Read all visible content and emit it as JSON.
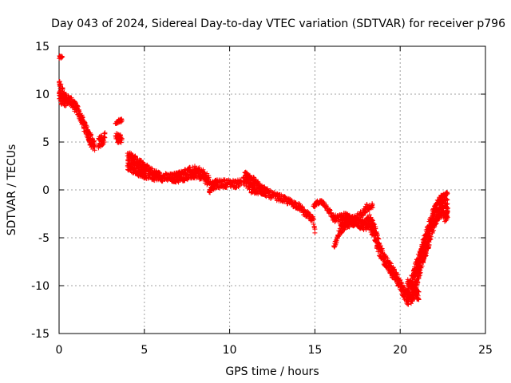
{
  "chart_data": {
    "type": "scatter",
    "title": "Day 043 of 2024, Sidereal Day-to-day VTEC variation (SDTVAR) for receiver p796",
    "xlabel": "GPS time / hours",
    "ylabel": "SDTVAR / TECUs",
    "xlim": [
      0,
      25
    ],
    "ylim": [
      -15,
      15
    ],
    "xticks": [
      0,
      5,
      10,
      15,
      20,
      25
    ],
    "yticks": [
      -15,
      -10,
      -5,
      0,
      5,
      10,
      15
    ],
    "xtick_labels": [
      "0",
      "5",
      "10",
      "15",
      "20",
      "25"
    ],
    "ytick_labels": [
      "-15",
      "-10",
      "-5",
      "0",
      "5",
      "10",
      "15"
    ],
    "grid": true,
    "marker": "+",
    "series": [
      {
        "name": "SDTVAR",
        "color": "#ff0000",
        "bands": [
          {
            "x": [
              0.0,
              0.1,
              0.2
            ],
            "y_low": [
              13.6,
              13.7,
              13.8
            ],
            "y_high": [
              14.0,
              14.0,
              14.0
            ]
          },
          {
            "x": [
              0.0,
              0.1,
              0.2,
              0.3,
              0.4,
              0.5,
              0.7,
              0.9,
              1.1,
              1.3,
              1.5,
              1.7,
              1.8
            ],
            "y_low": [
              9.2,
              9.0,
              8.8,
              8.7,
              8.8,
              8.9,
              8.7,
              8.2,
              7.6,
              7.0,
              6.0,
              5.3,
              4.8
            ],
            "y_high": [
              11.5,
              11.2,
              10.8,
              10.3,
              10.0,
              9.9,
              9.7,
              9.3,
              8.8,
              8.0,
              7.1,
              6.4,
              5.9
            ]
          },
          {
            "x": [
              1.7,
              1.8,
              1.9,
              2.0,
              2.1
            ],
            "y_low": [
              5.5,
              4.6,
              4.3,
              4.0,
              4.0
            ],
            "y_high": [
              6.5,
              6.2,
              5.7,
              5.3,
              5.1
            ]
          },
          {
            "x": [
              2.3,
              2.4,
              2.5,
              2.6,
              2.7
            ],
            "y_low": [
              4.3,
              4.3,
              4.6,
              4.8,
              5.0
            ],
            "y_high": [
              5.6,
              5.6,
              5.8,
              5.9,
              6.1
            ]
          },
          {
            "x": [
              3.3,
              3.4,
              3.5,
              3.6,
              3.7
            ],
            "y_low": [
              6.8,
              6.9,
              7.0,
              7.0,
              7.1
            ],
            "y_high": [
              7.0,
              7.2,
              7.4,
              7.4,
              7.5
            ]
          },
          {
            "x": [
              3.3,
              3.4,
              3.5,
              3.6,
              3.7
            ],
            "y_low": [
              5.2,
              5.0,
              4.8,
              4.8,
              4.8
            ],
            "y_high": [
              6.0,
              5.9,
              5.8,
              5.8,
              5.6
            ]
          },
          {
            "x": [
              4.0,
              4.3,
              4.6,
              5.0,
              5.5,
              6.0,
              6.5,
              7.0,
              7.5,
              8.0,
              8.4,
              8.8
            ],
            "y_low": [
              2.0,
              1.8,
              1.5,
              1.2,
              1.0,
              0.9,
              0.8,
              0.8,
              1.0,
              1.2,
              1.0,
              0.3
            ],
            "y_high": [
              4.0,
              3.9,
              3.5,
              2.8,
              2.2,
              1.8,
              1.7,
              1.9,
              2.3,
              2.5,
              2.2,
              1.5
            ]
          },
          {
            "x": [
              8.8,
              9.0,
              9.5,
              10.0,
              10.4,
              10.7
            ],
            "y_low": [
              -0.4,
              0.0,
              0.2,
              0.3,
              0.2,
              0.5
            ],
            "y_high": [
              0.8,
              1.0,
              1.1,
              1.1,
              1.0,
              1.2
            ]
          },
          {
            "x": [
              10.8,
              11.0,
              11.3,
              11.6,
              12.0,
              12.5,
              13.0,
              13.5,
              14.0,
              14.3
            ],
            "y_low": [
              0.6,
              0.2,
              -0.4,
              -0.4,
              -0.6,
              -1.0,
              -1.2,
              -1.6,
              -2.0,
              -2.4
            ],
            "y_high": [
              1.9,
              1.9,
              1.5,
              1.0,
              0.4,
              -0.2,
              -0.5,
              -0.9,
              -1.3,
              -1.8
            ]
          },
          {
            "x": [
              14.3,
              14.6,
              14.9,
              15.0
            ],
            "y_low": [
              -2.6,
              -2.9,
              -3.6,
              -4.6
            ],
            "y_high": [
              -1.9,
              -2.3,
              -2.8,
              -3.6
            ]
          },
          {
            "x": [
              14.9,
              15.2,
              15.5,
              15.8,
              16.1,
              16.4,
              16.7,
              17.0
            ],
            "y_low": [
              -2.0,
              -1.5,
              -1.6,
              -2.4,
              -3.4,
              -3.5,
              -3.2,
              -3.0
            ],
            "y_high": [
              -1.6,
              -1.0,
              -1.1,
              -1.8,
              -2.6,
              -2.6,
              -2.4,
              -2.3
            ]
          },
          {
            "x": [
              16.1,
              16.3,
              16.5,
              16.8,
              17.1,
              17.4,
              17.7,
              18.0,
              18.4
            ],
            "y_low": [
              -6.2,
              -5.4,
              -4.6,
              -4.0,
              -4.0,
              -3.6,
              -3.0,
              -2.4,
              -2.2
            ],
            "y_high": [
              -5.8,
              -4.8,
              -3.6,
              -3.0,
              -2.8,
              -2.6,
              -2.2,
              -1.5,
              -1.4
            ]
          },
          {
            "x": [
              17.0,
              17.3,
              17.6,
              17.9,
              18.2,
              18.5,
              18.8,
              19.1,
              19.4,
              19.7,
              20.0,
              20.2,
              20.4,
              20.6,
              20.8,
              21.0,
              21.3,
              21.6,
              21.9,
              22.2,
              22.5,
              22.8
            ],
            "y_low": [
              -3.0,
              -3.4,
              -4.0,
              -4.3,
              -4.0,
              -5.5,
              -7.0,
              -8.0,
              -8.8,
              -9.6,
              -10.5,
              -11.3,
              -12.0,
              -12.0,
              -11.5,
              -10.0,
              -8.0,
              -6.5,
              -4.5,
              -3.2,
              -2.8,
              -3.0
            ],
            "y_high": [
              -2.6,
              -2.8,
              -3.0,
              -3.2,
              -2.5,
              -3.5,
              -5.5,
              -6.7,
              -7.5,
              -8.4,
              -9.3,
              -10.0,
              -10.5,
              -10.5,
              -9.8,
              -7.8,
              -5.2,
              -3.8,
              -2.0,
              -1.0,
              -0.3,
              -0.2
            ]
          },
          {
            "x": [
              20.4,
              20.7,
              21.0,
              21.3,
              21.6,
              21.9,
              22.1
            ],
            "y_low": [
              -10.8,
              -10.0,
              -8.3,
              -6.6,
              -5.0,
              -4.0,
              -3.5
            ],
            "y_high": [
              -9.5,
              -8.6,
              -7.0,
              -5.5,
              -4.2,
              -3.2,
              -2.6
            ]
          },
          {
            "x": [
              20.7,
              20.9,
              21.1
            ],
            "y_low": [
              -11.2,
              -11.4,
              -11.6
            ],
            "y_high": [
              -9.8,
              -10.2,
              -10.6
            ]
          },
          {
            "x": [
              22.6,
              22.7,
              22.8
            ],
            "y_low": [
              -3.5,
              -3.2,
              -3.0
            ],
            "y_high": [
              -2.5,
              -2.2,
              -2.1
            ]
          }
        ]
      }
    ]
  }
}
